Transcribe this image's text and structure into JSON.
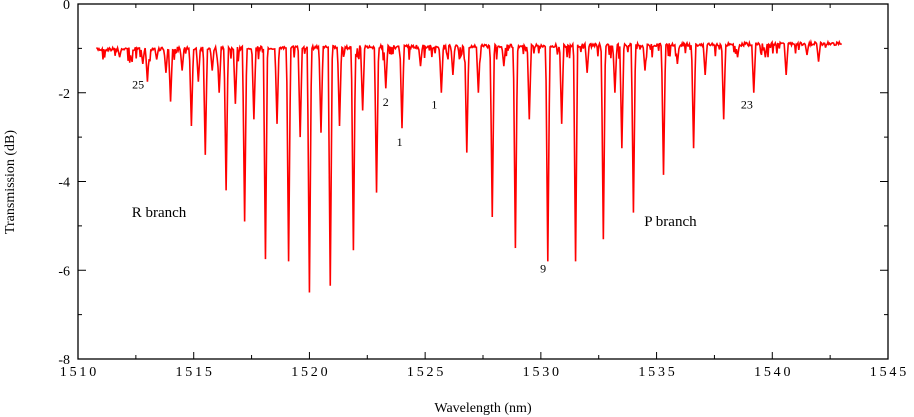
{
  "chart_data": {
    "type": "line",
    "title": "",
    "xlabel": "Wavelength (nm)",
    "ylabel": "Transmission (dB)",
    "xlim": [
      1510,
      1545
    ],
    "ylim": [
      0,
      -8
    ],
    "x_ticks": [
      1510,
      1515,
      1520,
      1525,
      1530,
      1535,
      1540,
      1545
    ],
    "x_tick_labels": [
      "1510",
      "1515",
      "1520",
      "1525",
      "1530",
      "1535",
      "1540",
      "1545"
    ],
    "y_ticks": [
      0,
      -2,
      -4,
      -6,
      -8
    ],
    "y_tick_labels": [
      "0",
      "-2",
      "-4",
      "-6",
      "-8"
    ],
    "grid": false,
    "line_color": "#ff0000",
    "baseline": {
      "x": [
        1510.8,
        1543.0
      ],
      "y": [
        -0.98,
        -0.85
      ]
    },
    "absorption_lines": [
      {
        "x": 1511.8,
        "y": -1.2
      },
      {
        "x": 1512.3,
        "y": -1.25
      },
      {
        "x": 1512.8,
        "y": -1.35
      },
      {
        "x": 1513.0,
        "y": -1.75
      },
      {
        "x": 1513.4,
        "y": -1.25
      },
      {
        "x": 1513.8,
        "y": -1.55
      },
      {
        "x": 1514.0,
        "y": -2.2
      },
      {
        "x": 1514.5,
        "y": -1.5
      },
      {
        "x": 1514.9,
        "y": -2.75
      },
      {
        "x": 1515.2,
        "y": -1.75
      },
      {
        "x": 1515.5,
        "y": -3.4
      },
      {
        "x": 1515.8,
        "y": -1.5
      },
      {
        "x": 1516.1,
        "y": -2.0
      },
      {
        "x": 1516.4,
        "y": -4.2
      },
      {
        "x": 1516.8,
        "y": -2.25
      },
      {
        "x": 1517.2,
        "y": -4.9
      },
      {
        "x": 1517.6,
        "y": -2.6
      },
      {
        "x": 1518.1,
        "y": -5.75
      },
      {
        "x": 1518.6,
        "y": -2.7
      },
      {
        "x": 1519.1,
        "y": -5.8
      },
      {
        "x": 1519.6,
        "y": -3.0
      },
      {
        "x": 1520.0,
        "y": -6.5
      },
      {
        "x": 1520.5,
        "y": -2.9
      },
      {
        "x": 1520.9,
        "y": -6.35
      },
      {
        "x": 1521.3,
        "y": -2.75
      },
      {
        "x": 1521.9,
        "y": -5.55
      },
      {
        "x": 1522.3,
        "y": -2.4
      },
      {
        "x": 1522.9,
        "y": -4.25
      },
      {
        "x": 1523.3,
        "y": -1.9
      },
      {
        "x": 1524.0,
        "y": -2.8
      },
      {
        "x": 1524.8,
        "y": -1.4
      },
      {
        "x": 1525.7,
        "y": -2.0
      },
      {
        "x": 1526.2,
        "y": -1.6
      },
      {
        "x": 1526.8,
        "y": -3.35
      },
      {
        "x": 1527.3,
        "y": -2.0
      },
      {
        "x": 1527.9,
        "y": -4.8
      },
      {
        "x": 1528.4,
        "y": -1.4
      },
      {
        "x": 1528.9,
        "y": -5.5
      },
      {
        "x": 1529.5,
        "y": -2.6
      },
      {
        "x": 1530.3,
        "y": -5.8
      },
      {
        "x": 1530.9,
        "y": -2.7
      },
      {
        "x": 1531.5,
        "y": -5.8
      },
      {
        "x": 1532.0,
        "y": -1.55
      },
      {
        "x": 1532.7,
        "y": -5.3
      },
      {
        "x": 1533.2,
        "y": -2.0
      },
      {
        "x": 1533.5,
        "y": -3.25
      },
      {
        "x": 1534.0,
        "y": -4.7
      },
      {
        "x": 1534.5,
        "y": -1.5
      },
      {
        "x": 1535.3,
        "y": -3.85
      },
      {
        "x": 1535.9,
        "y": -1.35
      },
      {
        "x": 1536.6,
        "y": -3.25
      },
      {
        "x": 1537.1,
        "y": -1.6
      },
      {
        "x": 1537.9,
        "y": -2.6
      },
      {
        "x": 1538.5,
        "y": -1.2
      },
      {
        "x": 1539.2,
        "y": -2.0
      },
      {
        "x": 1539.7,
        "y": -1.2
      },
      {
        "x": 1540.6,
        "y": -1.6
      },
      {
        "x": 1541.5,
        "y": -1.15
      },
      {
        "x": 1542.0,
        "y": -1.3
      }
    ],
    "annotations": [
      {
        "text": "R branch",
        "x": 1513.5,
        "y": -4.8,
        "size": "large"
      },
      {
        "text": "P branch",
        "x": 1535.6,
        "y": -5.0,
        "size": "large"
      },
      {
        "text": "25",
        "x": 1512.6,
        "y": -1.9,
        "size": "small"
      },
      {
        "text": "2",
        "x": 1523.3,
        "y": -2.3,
        "size": "small"
      },
      {
        "text": "1",
        "x": 1523.9,
        "y": -3.2,
        "size": "small"
      },
      {
        "text": "1",
        "x": 1525.4,
        "y": -2.35,
        "size": "small"
      },
      {
        "text": "9",
        "x": 1530.1,
        "y": -6.05,
        "size": "small"
      },
      {
        "text": "23",
        "x": 1538.9,
        "y": -2.35,
        "size": "small"
      }
    ]
  }
}
